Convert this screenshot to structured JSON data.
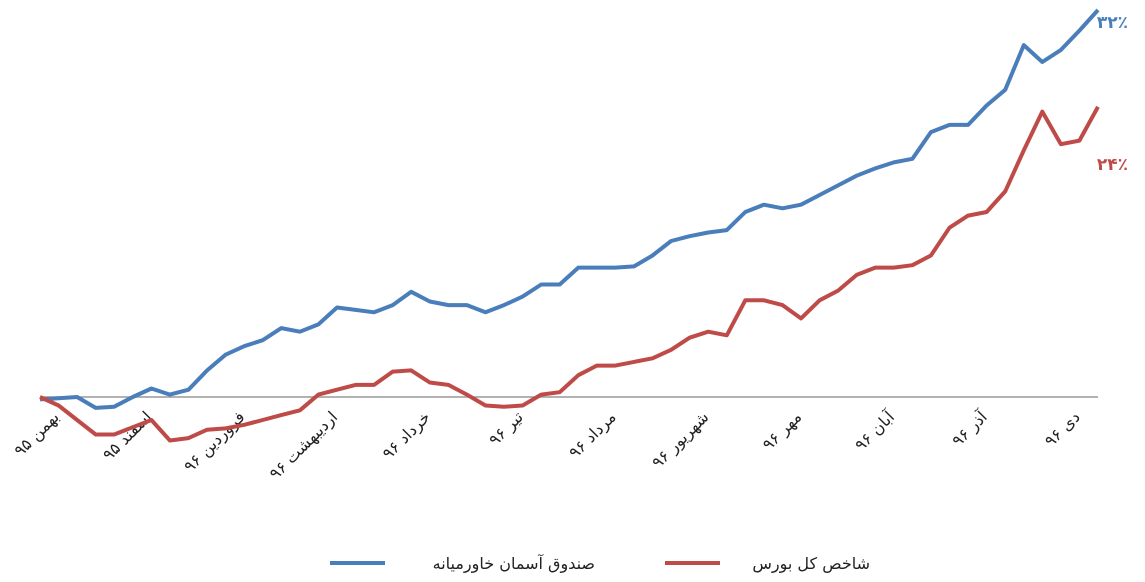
{
  "chart_data": {
    "type": "line",
    "categories": [
      "بهمن ۹۵",
      null,
      null,
      null,
      null,
      "اسفند ۹۵",
      null,
      null,
      null,
      null,
      "فروردین ۹۶",
      null,
      null,
      null,
      null,
      "اردیبهشت ۹۶",
      null,
      null,
      null,
      null,
      "خرداد ۹۶",
      null,
      null,
      null,
      null,
      "تیر ۹۶",
      null,
      null,
      null,
      null,
      "مرداد ۹۶",
      null,
      null,
      null,
      null,
      "شهریور ۹۶",
      null,
      null,
      null,
      null,
      "مهر ۹۶",
      null,
      null,
      null,
      null,
      "آبان ۹۶",
      null,
      null,
      null,
      null,
      "آذر ۹۶",
      null,
      null,
      null,
      null,
      "دی ۹۶",
      null,
      null
    ],
    "series": [
      {
        "name": "صندوق آسمان خاورمیانه",
        "color": "#4a7ebb",
        "end_label": "۳۲٪",
        "values": [
          -0.2,
          -0.1,
          0,
          -0.9,
          -0.8,
          0,
          0.7,
          0.2,
          0.6,
          2.2,
          3.5,
          4.2,
          4.7,
          5.7,
          5.4,
          6.0,
          7.4,
          7.2,
          7.0,
          7.6,
          8.7,
          7.9,
          7.6,
          7.6,
          7.0,
          7.6,
          8.3,
          9.3,
          9.3,
          10.7,
          10.7,
          10.7,
          10.8,
          11.7,
          12.9,
          13.3,
          13.6,
          13.8,
          15.3,
          15.9,
          15.6,
          15.9,
          16.7,
          17.5,
          18.3,
          18.9,
          19.4,
          19.7,
          21.9,
          22.5,
          22.5,
          24.1,
          25.4,
          29.1,
          27.7,
          28.7,
          30.3,
          32
        ]
      },
      {
        "name": "شاخص کل بورس",
        "color": "#be4b48",
        "end_label": "۲۴٪",
        "values": [
          0,
          -0.7,
          -1.9,
          -3.1,
          -3.1,
          -2.5,
          -1.9,
          -3.6,
          -3.4,
          -2.7,
          -2.6,
          -2.3,
          -1.9,
          -1.5,
          -1.1,
          0.2,
          0.6,
          1.0,
          1.0,
          2.1,
          2.2,
          1.2,
          1.0,
          0.2,
          -0.7,
          -0.8,
          -0.7,
          0.2,
          0.4,
          1.8,
          2.6,
          2.6,
          2.9,
          3.2,
          3.9,
          4.9,
          5.4,
          5.1,
          8.0,
          8.0,
          7.6,
          6.5,
          8.0,
          8.8,
          10.1,
          10.7,
          10.7,
          10.9,
          11.7,
          14.0,
          15.0,
          15.3,
          17.0,
          20.4,
          23.6,
          20.9,
          21.2,
          24
        ]
      }
    ]
  }
}
